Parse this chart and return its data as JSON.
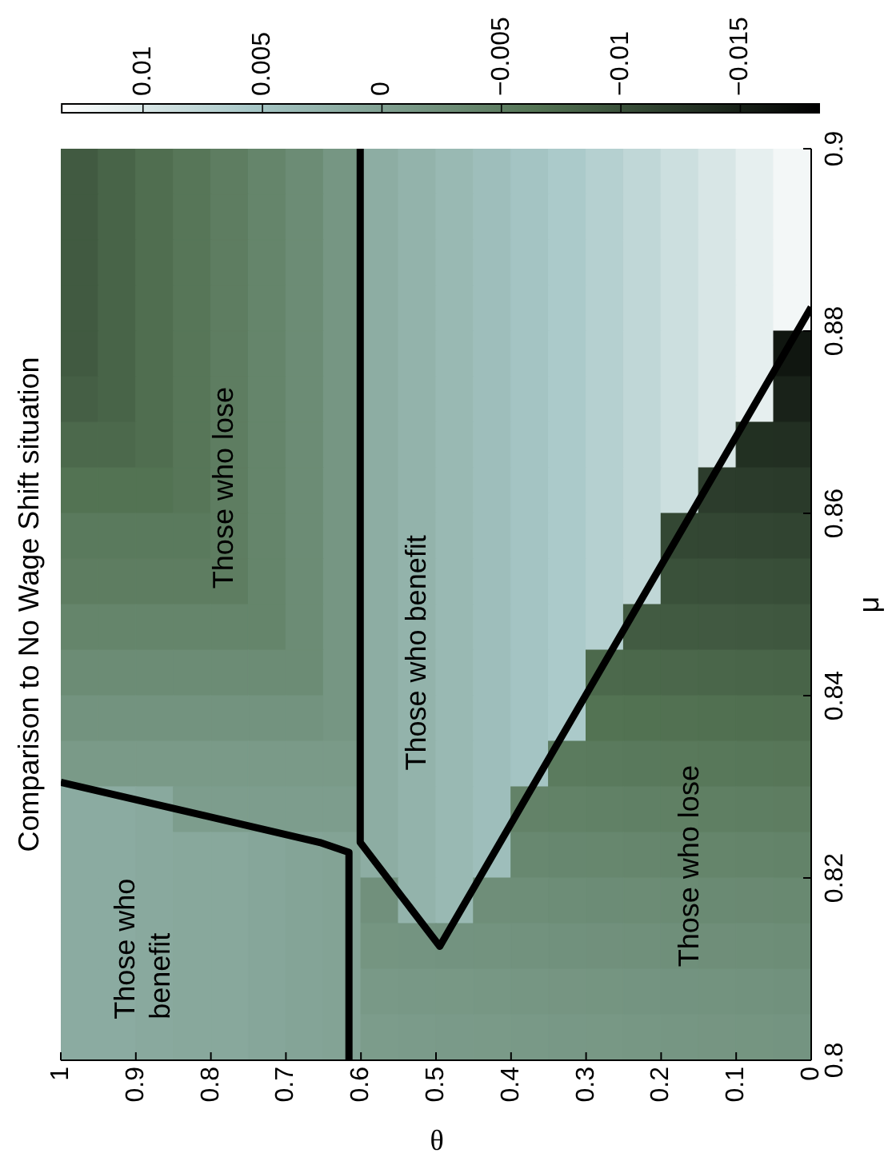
{
  "chart_data": {
    "type": "heatmap",
    "title": "Comparison to No Wage Shift situation",
    "xlabel": "θ",
    "ylabel": "μ",
    "x": [
      0.975,
      0.925,
      0.875,
      0.825,
      0.775,
      0.725,
      0.675,
      0.625,
      0.575,
      0.525,
      0.475,
      0.425,
      0.375,
      0.325,
      0.275,
      0.225,
      0.175,
      0.125,
      0.075,
      0.025
    ],
    "cells": [
      [
        -0.009,
        -0.008,
        -0.007,
        -0.006,
        -0.005,
        -0.004,
        -0.003,
        -0.0015,
        0.0018,
        0.0026,
        0.0034,
        0.0042,
        0.005,
        0.0058,
        0.0067,
        0.0077,
        0.0088,
        0.0099,
        0.0111,
        0.0123
      ],
      [
        -0.009,
        -0.008,
        -0.007,
        -0.006,
        -0.005,
        -0.004,
        -0.003,
        -0.0015,
        0.0018,
        0.0026,
        0.0034,
        0.0042,
        0.005,
        0.0058,
        0.0067,
        0.0077,
        0.0088,
        0.0099,
        0.0111,
        0.0123
      ],
      [
        -0.009,
        -0.008,
        -0.007,
        -0.006,
        -0.005,
        -0.004,
        -0.003,
        -0.0015,
        0.0018,
        0.0026,
        0.0034,
        0.0042,
        0.005,
        0.0058,
        0.0067,
        0.0077,
        0.0088,
        0.0099,
        0.0111,
        0.0123
      ],
      [
        -0.009,
        -0.008,
        -0.007,
        -0.006,
        -0.005,
        -0.004,
        -0.003,
        -0.0015,
        0.0018,
        0.0026,
        0.0034,
        0.0042,
        0.005,
        0.0058,
        0.0067,
        0.0077,
        0.0088,
        0.0099,
        0.0111,
        0.0123
      ],
      [
        -0.009,
        -0.008,
        -0.007,
        -0.006,
        -0.005,
        -0.004,
        -0.003,
        -0.0015,
        0.0018,
        0.0026,
        0.0034,
        0.0042,
        0.005,
        0.0058,
        0.0067,
        0.0077,
        0.0088,
        0.0099,
        0.0111,
        -0.016
      ],
      [
        -0.0085,
        -0.008,
        -0.007,
        -0.006,
        -0.005,
        -0.004,
        -0.003,
        -0.0015,
        0.0018,
        0.0026,
        0.0034,
        0.0042,
        0.005,
        0.0058,
        0.0067,
        0.0077,
        0.0088,
        0.0099,
        0.0111,
        -0.0148
      ],
      [
        -0.0075,
        -0.0075,
        -0.007,
        -0.006,
        -0.005,
        -0.004,
        -0.003,
        -0.0015,
        0.0018,
        0.0026,
        0.0034,
        0.0042,
        0.005,
        0.0058,
        0.0067,
        0.0077,
        0.0088,
        0.0099,
        -0.0134,
        -0.0135
      ],
      [
        -0.0065,
        -0.0065,
        -0.0065,
        -0.006,
        -0.005,
        -0.004,
        -0.003,
        -0.0015,
        0.0018,
        0.0026,
        0.0034,
        0.0042,
        0.005,
        0.0058,
        0.0067,
        0.0077,
        0.0088,
        -0.0121,
        -0.0122,
        -0.0123
      ],
      [
        -0.0055,
        -0.0055,
        -0.0055,
        -0.0055,
        -0.005,
        -0.004,
        -0.003,
        -0.0015,
        0.0018,
        0.0026,
        0.0034,
        0.0042,
        0.005,
        0.0058,
        0.0067,
        0.0077,
        -0.011,
        -0.0111,
        -0.0112,
        -0.0113
      ],
      [
        -0.005,
        -0.005,
        -0.005,
        -0.005,
        -0.005,
        -0.004,
        -0.003,
        -0.0015,
        0.0018,
        0.0026,
        0.0034,
        0.0042,
        0.005,
        0.0058,
        0.0067,
        0.0077,
        -0.01,
        -0.0101,
        -0.0102,
        -0.0103
      ],
      [
        -0.004,
        -0.004,
        -0.004,
        -0.004,
        -0.004,
        -0.004,
        -0.003,
        -0.0015,
        0.0018,
        0.0026,
        0.0034,
        0.0042,
        0.005,
        0.0058,
        0.0067,
        -0.0089,
        -0.009,
        -0.0091,
        -0.0092,
        -0.0093
      ],
      [
        -0.003,
        -0.003,
        -0.003,
        -0.003,
        -0.003,
        -0.003,
        -0.003,
        -0.0015,
        0.0018,
        0.0026,
        0.0034,
        0.0042,
        0.005,
        0.0058,
        -0.0075,
        -0.0076,
        -0.0077,
        -0.0078,
        -0.0079,
        -0.008
      ],
      [
        -0.002,
        -0.002,
        -0.002,
        -0.002,
        -0.002,
        -0.002,
        -0.002,
        -0.0015,
        0.0018,
        0.0026,
        0.0034,
        0.0042,
        0.005,
        0.0058,
        -0.0065,
        -0.0066,
        -0.0067,
        -0.0068,
        -0.0069,
        -0.007
      ],
      [
        -0.001,
        -0.001,
        -0.001,
        -0.001,
        -0.001,
        -0.001,
        -0.001,
        -0.001,
        0.0018,
        0.0026,
        0.0034,
        0.0042,
        0.005,
        -0.0054,
        -0.0055,
        -0.0056,
        -0.0057,
        -0.0058,
        -0.0059,
        -0.006
      ],
      [
        0.0015,
        0.0015,
        0.0012,
        -0.0005,
        -0.0005,
        -0.0005,
        -0.0005,
        -0.0005,
        0.0018,
        0.0026,
        0.0034,
        0.0042,
        -0.0043,
        -0.0044,
        -0.0045,
        -0.0046,
        -0.0047,
        -0.0048,
        -0.0049,
        -0.005
      ],
      [
        0.0015,
        0.0015,
        0.0012,
        0.001,
        0.001,
        0.0008,
        0.0005,
        0.0003,
        0.0018,
        0.0026,
        0.0034,
        0.0042,
        -0.0035,
        -0.0036,
        -0.0037,
        -0.0038,
        -0.0039,
        -0.004,
        -0.0041,
        -0.0042
      ],
      [
        0.0015,
        0.0015,
        0.0012,
        0.001,
        0.001,
        0.0008,
        0.0005,
        0.0003,
        -0.0023,
        0.0026,
        0.0034,
        -0.0026,
        -0.0027,
        -0.0028,
        -0.0029,
        -0.003,
        -0.0031,
        -0.0032,
        -0.0033,
        -0.0034
      ],
      [
        0.0015,
        0.0015,
        0.0012,
        0.001,
        0.001,
        0.0008,
        0.0005,
        0.0003,
        -0.0017,
        -0.0018,
        -0.0019,
        -0.002,
        -0.0021,
        -0.0022,
        -0.0023,
        -0.0024,
        -0.0025,
        -0.0026,
        -0.0027,
        -0.0028
      ],
      [
        0.0015,
        0.0015,
        0.0012,
        0.001,
        0.001,
        0.0008,
        0.0005,
        0.0003,
        -0.0011,
        -0.0012,
        -0.0013,
        -0.0014,
        -0.0015,
        -0.0016,
        -0.0017,
        -0.0018,
        -0.0019,
        -0.002,
        -0.0021,
        -0.0022
      ],
      [
        0.0015,
        0.0015,
        0.0012,
        0.001,
        0.001,
        0.0008,
        0.0005,
        0.0003,
        -0.0007,
        -0.0008,
        -0.0009,
        -0.001,
        -0.0011,
        -0.0012,
        -0.0013,
        -0.0014,
        -0.0015,
        -0.0016,
        -0.0017,
        -0.0018
      ]
    ],
    "xlim": [
      1,
      0
    ],
    "xticks": [
      1,
      0.9,
      0.8,
      0.7,
      0.6,
      0.5,
      0.4,
      0.3,
      0.2,
      0.1,
      0
    ],
    "ylim": [
      0.8,
      0.9
    ],
    "yticks": [
      0.8,
      0.82,
      0.84,
      0.86,
      0.88,
      0.9
    ],
    "clim": [
      0.0134,
      -0.0183
    ],
    "cticks": [
      0.01,
      0.005,
      0,
      {
        "value": -0.005,
        "label": "−0.005"
      },
      {
        "value": -0.01,
        "label": "−0.01"
      },
      {
        "value": -0.015,
        "label": "−0.015"
      }
    ],
    "series": [
      {
        "type": "line",
        "color": "#000000",
        "x": [
          1,
          0.655,
          0.616,
          0.616
        ],
        "values": [
          0.8305,
          0.8239,
          0.8228,
          0.8
        ]
      },
      {
        "type": "line",
        "color": "#000000",
        "x": [
          0.601,
          0.601,
          0.495,
          0
        ],
        "values": [
          0.9,
          0.8239,
          0.8125,
          0.8826
        ]
      }
    ],
    "annotations": [
      "Those who lose",
      "Those who benefit",
      "Those who\nbenefit",
      "Those who lose"
    ]
  }
}
